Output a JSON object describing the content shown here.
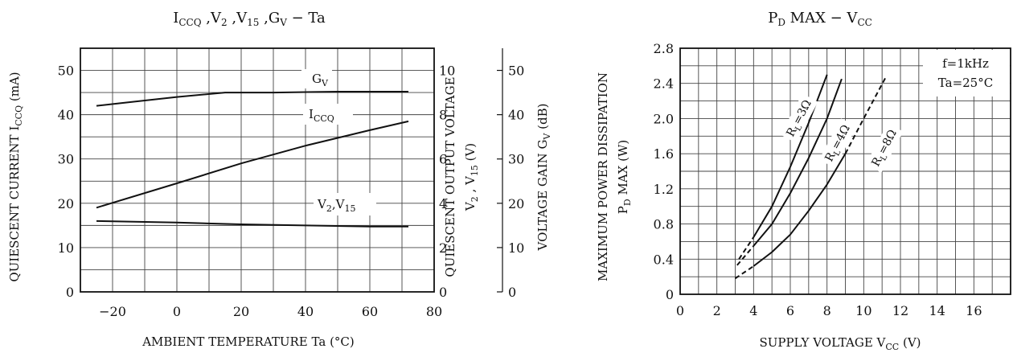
{
  "chart_data": [
    {
      "type": "line",
      "title": "I_CCQ ,V_2 ,V_15 ,G_V  −  Ta",
      "xlabel": "AMBIENT TEMPERATURE Ta (°C)",
      "ylabel": "QUIESCENT CURRENT I_CCQ (mA)",
      "ylabel2_line1": "QUIESCENT OUTPUT VOLTAGE",
      "ylabel2_line2": "V_2 , V_15 (V)",
      "ylabel3": "VOLTAGE GAIN G_V (dB)",
      "xlim": [
        -30,
        80
      ],
      "ylim": [
        0,
        55
      ],
      "y2lim": [
        0,
        11
      ],
      "y3lim": [
        0,
        55
      ],
      "grid": true,
      "x_ticks": [
        "−20",
        "0",
        "20",
        "40",
        "60",
        "80"
      ],
      "x_tick_values": [
        -20,
        0,
        20,
        40,
        60,
        80
      ],
      "y_ticks": [
        "0",
        "10",
        "20",
        "30",
        "40",
        "50"
      ],
      "y_tick_values": [
        0,
        10,
        20,
        30,
        40,
        50
      ],
      "y2_ticks": [
        "0",
        "2",
        "4",
        "6",
        "8",
        "10"
      ],
      "y2_tick_values": [
        0,
        2,
        4,
        6,
        8,
        10
      ],
      "y3_ticks": [
        "0",
        "10",
        "20",
        "30",
        "40",
        "50"
      ],
      "y3_tick_values": [
        0,
        10,
        20,
        30,
        40,
        50
      ],
      "series": [
        {
          "name": "G_V",
          "axis": "y3",
          "x": [
            -25,
            0,
            15,
            30,
            50,
            72
          ],
          "y": [
            42,
            44,
            45,
            45,
            45.2,
            45.2
          ]
        },
        {
          "name": "I_CCQ",
          "axis": "y",
          "x": [
            -25,
            0,
            20,
            40,
            60,
            72
          ],
          "y": [
            19,
            24.5,
            29,
            33,
            36.5,
            38.5
          ]
        },
        {
          "name": "V_2,V_15",
          "axis": "y2",
          "x": [
            -25,
            0,
            20,
            40,
            60,
            72
          ],
          "y": [
            3.2,
            3.13,
            3.05,
            3.0,
            2.95,
            2.95
          ]
        }
      ]
    },
    {
      "type": "line",
      "title": "P_D  MAX  −  V_CC",
      "xlabel": "SUPPLY VOLTAGE V_CC (V)",
      "ylabel_line1": "MAXIMUM POWER DISSIPATION",
      "ylabel_line2": "P_D  MAX  (W)",
      "xlim": [
        0,
        18
      ],
      "ylim": [
        0,
        2.8
      ],
      "grid": true,
      "x_ticks": [
        "0",
        "2",
        "4",
        "6",
        "8",
        "10",
        "12",
        "14",
        "16"
      ],
      "x_tick_values": [
        0,
        2,
        4,
        6,
        8,
        10,
        12,
        14,
        16
      ],
      "y_ticks": [
        "0",
        "0.4",
        "0.8",
        "1.2",
        "1.6",
        "2.0",
        "2.4",
        "2.8"
      ],
      "y_tick_values": [
        0,
        0.4,
        0.8,
        1.2,
        1.6,
        2.0,
        2.4,
        2.8
      ],
      "conditions": [
        "f=1kHz",
        "Ta=25°C"
      ],
      "series": [
        {
          "name": "R_L=3Ω",
          "x": [
            3.2,
            4,
            5,
            6,
            7,
            8
          ],
          "y": [
            0.4,
            0.65,
            1.0,
            1.45,
            1.95,
            2.5
          ],
          "dashed_until_x": 4
        },
        {
          "name": "R_L=4Ω",
          "x": [
            3.1,
            4,
            5,
            6,
            7,
            8,
            8.8
          ],
          "y": [
            0.33,
            0.55,
            0.8,
            1.15,
            1.55,
            2.0,
            2.45
          ],
          "dashed_until_x": 4
        },
        {
          "name": "R_L=8Ω",
          "x": [
            3,
            4,
            5,
            6,
            7,
            8,
            9,
            10,
            11.2
          ],
          "y": [
            0.18,
            0.32,
            0.48,
            0.68,
            0.95,
            1.25,
            1.6,
            2.0,
            2.47
          ],
          "dashed_until_x": 4,
          "dashed_from_x": 9
        }
      ]
    }
  ]
}
